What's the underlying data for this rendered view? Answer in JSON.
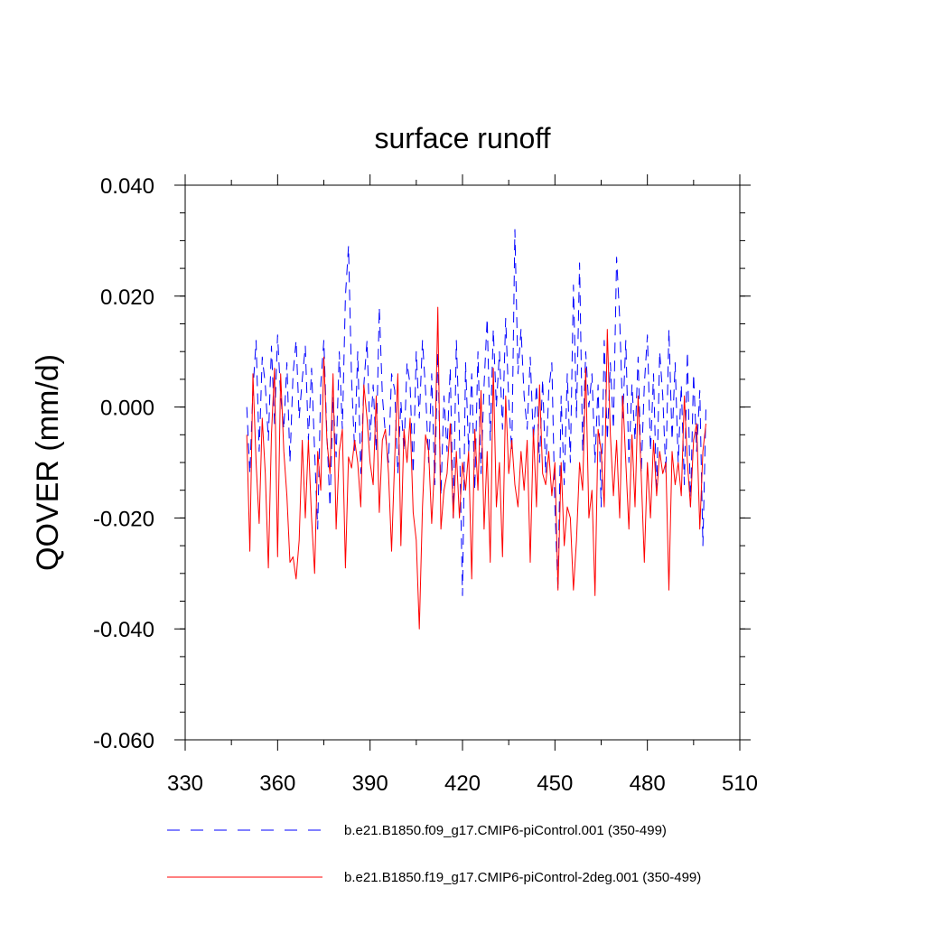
{
  "chart_data": {
    "type": "line",
    "title": "surface runoff",
    "xlabel": "",
    "ylabel": "QOVER  (mm/d)",
    "xlim": [
      330,
      510
    ],
    "ylim": [
      -0.06,
      0.04
    ],
    "xticks": [
      330,
      360,
      390,
      420,
      450,
      480,
      510
    ],
    "xtick_labels": [
      "330",
      "360",
      "390",
      "420",
      "450",
      "480",
      "510"
    ],
    "yticks": [
      -0.06,
      -0.04,
      -0.02,
      0.0,
      0.02,
      0.04
    ],
    "ytick_labels": [
      "-0.060",
      "-0.040",
      "-0.020",
      "0.000",
      "0.020",
      "0.040"
    ],
    "legend_position": "bottom",
    "series": [
      {
        "name": "b.e21.B1850.f09_g17.CMIP6-piControl.001 (350-499)",
        "color": "#0000ff",
        "style": "dashed",
        "x": [
          350,
          351,
          352,
          353,
          354,
          355,
          356,
          357,
          358,
          359,
          360,
          361,
          362,
          363,
          364,
          365,
          366,
          367,
          368,
          369,
          370,
          371,
          372,
          373,
          374,
          375,
          376,
          377,
          378,
          379,
          380,
          381,
          382,
          383,
          384,
          385,
          386,
          387,
          388,
          389,
          390,
          391,
          392,
          393,
          394,
          395,
          396,
          397,
          398,
          399,
          400,
          401,
          402,
          403,
          404,
          405,
          406,
          407,
          408,
          409,
          410,
          411,
          412,
          413,
          414,
          415,
          416,
          417,
          418,
          419,
          420,
          421,
          422,
          423,
          424,
          425,
          426,
          427,
          428,
          429,
          430,
          431,
          432,
          433,
          434,
          435,
          436,
          437,
          438,
          439,
          440,
          441,
          442,
          443,
          444,
          445,
          446,
          447,
          448,
          449,
          450,
          451,
          452,
          453,
          454,
          455,
          456,
          457,
          458,
          459,
          460,
          461,
          462,
          463,
          464,
          465,
          466,
          467,
          468,
          469,
          470,
          471,
          472,
          473,
          474,
          475,
          476,
          477,
          478,
          479,
          480,
          481,
          482,
          483,
          484,
          485,
          486,
          487,
          488,
          489,
          490,
          491,
          492,
          493,
          494,
          495,
          496,
          497,
          498,
          499
        ],
        "y": [
          0.0,
          -0.012,
          0.003,
          0.012,
          -0.008,
          0.009,
          0.004,
          -0.006,
          0.011,
          -0.003,
          0.013,
          0.002,
          -0.004,
          0.008,
          -0.01,
          0.006,
          0.012,
          -0.002,
          0.005,
          0.011,
          -0.006,
          0.007,
          -0.008,
          -0.022,
          0.004,
          0.012,
          -0.005,
          -0.018,
          0.002,
          -0.009,
          0.01,
          -0.004,
          0.02,
          0.029,
          0.005,
          -0.008,
          0.01,
          -0.012,
          0.004,
          0.012,
          -0.006,
          0.004,
          -0.008,
          0.018,
          0.002,
          -0.005,
          -0.01,
          0.006,
          0.003,
          -0.012,
          0.001,
          -0.008,
          0.008,
          0.004,
          -0.012,
          0.01,
          -0.002,
          0.012,
          0.003,
          -0.01,
          0.006,
          -0.014,
          0.01,
          -0.016,
          0.002,
          -0.008,
          0.007,
          -0.02,
          0.012,
          -0.005,
          -0.034,
          0.008,
          -0.008,
          0.006,
          -0.015,
          0.01,
          -0.012,
          0.004,
          0.016,
          -0.006,
          0.014,
          0.0,
          0.01,
          -0.004,
          0.016,
          0.001,
          -0.008,
          0.032,
          0.006,
          0.014,
          0.002,
          -0.004,
          0.009,
          -0.006,
          0.004,
          -0.01,
          0.005,
          -0.012,
          0.003,
          0.008,
          -0.018,
          -0.033,
          0.002,
          -0.014,
          0.006,
          -0.01,
          0.022,
          -0.002,
          0.026,
          -0.008,
          0.01,
          0.0,
          0.006,
          -0.01,
          0.004,
          -0.018,
          0.012,
          -0.006,
          0.008,
          -0.004,
          0.027,
          0.016,
          -0.002,
          0.012,
          -0.01,
          0.004,
          -0.006,
          0.009,
          -0.012,
          0.004,
          0.013,
          -0.008,
          0.006,
          -0.016,
          0.01,
          0.002,
          -0.012,
          0.014,
          -0.006,
          0.008,
          -0.01,
          0.004,
          -0.014,
          0.01,
          -0.018,
          0.006,
          -0.008,
          0.003,
          -0.025,
          0.0
        ]
      },
      {
        "name": "b.e21.B1850.f19_g17.CMIP6-piControl-2deg.001 (350-499)",
        "color": "#ff0000",
        "style": "solid",
        "x": [
          350,
          351,
          352,
          353,
          354,
          355,
          356,
          357,
          358,
          359,
          360,
          361,
          362,
          363,
          364,
          365,
          366,
          367,
          368,
          369,
          370,
          371,
          372,
          373,
          374,
          375,
          376,
          377,
          378,
          379,
          380,
          381,
          382,
          383,
          384,
          385,
          386,
          387,
          388,
          389,
          390,
          391,
          392,
          393,
          394,
          395,
          396,
          397,
          398,
          399,
          400,
          401,
          402,
          403,
          404,
          405,
          406,
          407,
          408,
          409,
          410,
          411,
          412,
          413,
          414,
          415,
          416,
          417,
          418,
          419,
          420,
          421,
          422,
          423,
          424,
          425,
          426,
          427,
          428,
          429,
          430,
          431,
          432,
          433,
          434,
          435,
          436,
          437,
          438,
          439,
          440,
          441,
          442,
          443,
          444,
          445,
          446,
          447,
          448,
          449,
          450,
          451,
          452,
          453,
          454,
          455,
          456,
          457,
          458,
          459,
          460,
          461,
          462,
          463,
          464,
          465,
          466,
          467,
          468,
          469,
          470,
          471,
          472,
          473,
          474,
          475,
          476,
          477,
          478,
          479,
          480,
          481,
          482,
          483,
          484,
          485,
          486,
          487,
          488,
          489,
          490,
          491,
          492,
          493,
          494,
          495,
          496,
          497,
          498,
          499
        ],
        "y": [
          -0.005,
          -0.026,
          0.006,
          -0.01,
          -0.021,
          -0.002,
          -0.012,
          -0.029,
          -0.005,
          0.007,
          -0.027,
          0.006,
          -0.008,
          -0.016,
          -0.028,
          -0.027,
          -0.031,
          -0.024,
          -0.006,
          -0.02,
          -0.006,
          -0.02,
          -0.03,
          -0.008,
          -0.015,
          0.009,
          -0.006,
          -0.012,
          0.006,
          -0.022,
          -0.008,
          -0.004,
          -0.029,
          -0.009,
          -0.011,
          -0.006,
          -0.01,
          -0.018,
          0.004,
          -0.002,
          -0.01,
          -0.014,
          0.002,
          -0.019,
          -0.006,
          -0.004,
          -0.012,
          -0.026,
          -0.009,
          0.006,
          -0.025,
          -0.004,
          -0.01,
          -0.002,
          -0.019,
          -0.024,
          -0.04,
          -0.018,
          -0.005,
          -0.008,
          -0.021,
          -0.01,
          0.018,
          -0.022,
          -0.015,
          -0.012,
          -0.003,
          -0.02,
          -0.008,
          -0.02,
          -0.01,
          -0.015,
          -0.008,
          -0.031,
          -0.004,
          -0.015,
          0.003,
          -0.022,
          -0.008,
          -0.028,
          0.007,
          -0.018,
          -0.01,
          -0.027,
          0.002,
          -0.012,
          -0.006,
          -0.014,
          -0.018,
          -0.008,
          -0.015,
          -0.006,
          -0.028,
          -0.004,
          -0.018,
          0.004,
          -0.012,
          -0.014,
          -0.008,
          -0.016,
          -0.01,
          -0.033,
          -0.01,
          -0.025,
          -0.018,
          -0.02,
          -0.033,
          -0.024,
          -0.01,
          -0.015,
          0.007,
          -0.02,
          -0.015,
          -0.034,
          -0.004,
          -0.008,
          -0.018,
          0.014,
          -0.005,
          -0.016,
          -0.006,
          -0.02,
          0.002,
          -0.01,
          -0.022,
          -0.005,
          -0.018,
          0.002,
          -0.012,
          -0.028,
          -0.01,
          -0.02,
          -0.006,
          -0.016,
          -0.008,
          -0.012,
          -0.01,
          -0.033,
          -0.008,
          -0.014,
          -0.01,
          -0.016,
          0.002,
          -0.01,
          -0.018,
          -0.006,
          -0.003,
          -0.022,
          -0.008,
          -0.003
        ]
      }
    ]
  }
}
